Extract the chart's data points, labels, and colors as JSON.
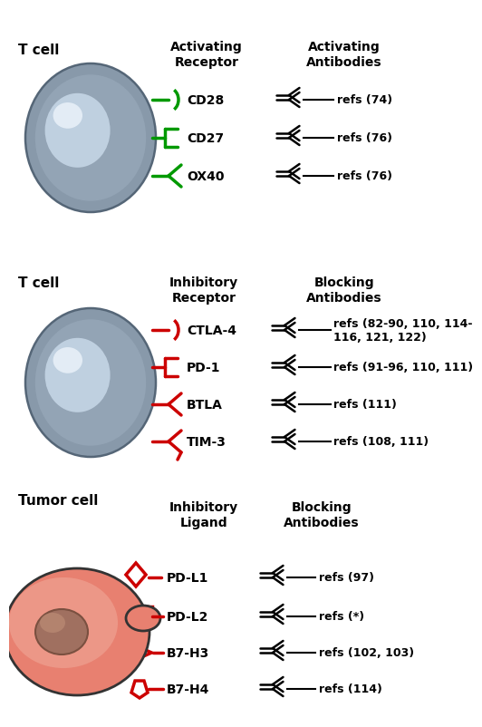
{
  "panel1": {
    "cell_label": "T cell",
    "col1_header": "Activating\nReceptor",
    "col2_header": "Activating\nAntibodies",
    "receptors": [
      "CD28",
      "CD27",
      "OX40"
    ],
    "refs": [
      "refs (74)",
      "refs (76)",
      "refs (76)"
    ],
    "receptor_color": "#009900"
  },
  "panel2": {
    "cell_label": "T cell",
    "col1_header": "Inhibitory\nReceptor",
    "col2_header": "Blocking\nAntibodies",
    "receptors": [
      "CTLA-4",
      "PD-1",
      "BTLA",
      "TIM-3"
    ],
    "refs": [
      "refs (82-90, 110, 114-\n116, 121, 122)",
      "refs (91-96, 110, 111)",
      "refs (111)",
      "refs (108, 111)"
    ],
    "receptor_color": "#cc0000"
  },
  "panel3": {
    "cell_label": "Tumor cell",
    "col1_header": "Inhibitory\nLigand",
    "col2_header": "Blocking\nAntibodies",
    "receptors": [
      "PD-L1",
      "PD-L2",
      "B7-H3",
      "B7-H4"
    ],
    "refs": [
      "refs (97)",
      "refs (*)",
      "refs (102, 103)",
      "refs (114)"
    ],
    "ligand_color": "#cc0000"
  },
  "cell_outer_color": "#8899aa",
  "cell_edge_color": "#556677",
  "cell_inner_color": "#c8d8e8",
  "cell_highlight": "#e8f0f8",
  "tumor_outer_color": "#e88070",
  "tumor_edge_color": "#333333",
  "tumor_highlight": "#f0a898",
  "nucleus_color": "#a07060",
  "nucleus_edge": "#7a5040",
  "background_color": "#ffffff"
}
